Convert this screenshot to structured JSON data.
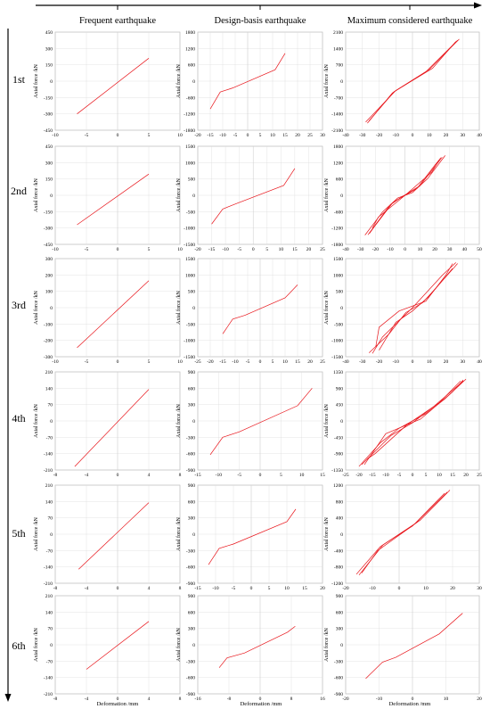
{
  "column_titles": [
    "Frequent earthquake",
    "Design-basis earthquake",
    "Maximum considered earthquake"
  ],
  "row_labels": [
    "1st",
    "2nd",
    "3rd",
    "4th",
    "5th",
    "6th"
  ],
  "y_axis_label": "Axial force /kN",
  "x_axis_label": "Deformation /mm",
  "colors": {
    "line": "#e8141a",
    "axis": "#000000",
    "grid": "#dcdcdc",
    "frame": "#9a9a9a"
  },
  "chart_data": [
    {
      "type": "line",
      "row": "1st",
      "column": "Frequent earthquake",
      "xlim": [
        -10,
        10
      ],
      "ylim": [
        -450,
        450
      ],
      "xticks": [
        -10,
        -5,
        0,
        5,
        10
      ],
      "yticks": [
        -450,
        -300,
        -150,
        0,
        150,
        300,
        450
      ],
      "series": [
        {
          "points": [
            [
              -6.5,
              -300
            ],
            [
              5,
              210
            ]
          ]
        }
      ]
    },
    {
      "type": "line",
      "row": "1st",
      "column": "Design-basis earthquake",
      "xlim": [
        -20,
        30
      ],
      "ylim": [
        -1800,
        1800
      ],
      "xticks": [
        -20,
        -15,
        -10,
        -5,
        0,
        5,
        10,
        15,
        20,
        25,
        30
      ],
      "yticks": [
        -1800,
        -1200,
        -600,
        0,
        600,
        1200,
        1800
      ],
      "series": [
        {
          "points": [
            [
              -15,
              -1020
            ],
            [
              -11,
              -400
            ],
            [
              -6,
              -250
            ],
            [
              11,
              420
            ],
            [
              15,
              1020
            ]
          ]
        }
      ]
    },
    {
      "type": "line",
      "row": "1st",
      "column": "Maximum considered earthquake",
      "xlim": [
        -40,
        40
      ],
      "ylim": [
        -2100,
        2100
      ],
      "xticks": [
        -40,
        -30,
        -20,
        -10,
        0,
        10,
        20,
        30,
        40
      ],
      "yticks": [
        -2100,
        -1400,
        -700,
        0,
        700,
        1400,
        2100
      ],
      "series": [
        {
          "points": [
            [
              -28,
              -1750
            ],
            [
              -10,
              -400
            ],
            [
              10,
              500
            ],
            [
              28,
              1800
            ]
          ]
        },
        {
          "points": [
            [
              -27,
              -1800
            ],
            [
              -12,
              -500
            ],
            [
              8,
              400
            ],
            [
              27,
              1750
            ]
          ]
        },
        {
          "points": [
            [
              -26,
              -1700
            ],
            [
              -11,
              -450
            ],
            [
              12,
              550
            ],
            [
              26,
              1700
            ]
          ]
        }
      ]
    },
    {
      "type": "line",
      "row": "2nd",
      "column": "Frequent earthquake",
      "xlim": [
        -10,
        10
      ],
      "ylim": [
        -450,
        450
      ],
      "xticks": [
        -10,
        -5,
        0,
        5,
        10
      ],
      "yticks": [
        -450,
        -300,
        -150,
        0,
        150,
        300,
        450
      ],
      "series": [
        {
          "points": [
            [
              -6.5,
              -270
            ],
            [
              5,
              195
            ]
          ]
        }
      ]
    },
    {
      "type": "line",
      "row": "2nd",
      "column": "Design-basis earthquake",
      "xlim": [
        -20,
        25
      ],
      "ylim": [
        -1500,
        1500
      ],
      "xticks": [
        -20,
        -15,
        -10,
        -5,
        0,
        5,
        10,
        15,
        20,
        25
      ],
      "yticks": [
        -1500,
        -1000,
        -500,
        0,
        500,
        1000,
        1500
      ],
      "series": [
        {
          "points": [
            [
              -15,
              -880
            ],
            [
              -11,
              -420
            ],
            [
              -6,
              -250
            ],
            [
              11,
              300
            ],
            [
              15,
              820
            ]
          ]
        }
      ]
    },
    {
      "type": "line",
      "row": "2nd",
      "column": "Maximum considered earthquake",
      "xlim": [
        -40,
        50
      ],
      "ylim": [
        -1800,
        1800
      ],
      "xticks": [
        -40,
        -30,
        -20,
        -10,
        0,
        10,
        20,
        30,
        40,
        50
      ],
      "yticks": [
        -1800,
        -1200,
        -600,
        0,
        600,
        1200,
        1800
      ],
      "series": [
        {
          "points": [
            [
              -27,
              -1460
            ],
            [
              -15,
              -600
            ],
            [
              -5,
              -100
            ],
            [
              5,
              100
            ],
            [
              15,
              600
            ],
            [
              27,
              1460
            ]
          ]
        },
        {
          "points": [
            [
              -25,
              -1450
            ],
            [
              -10,
              -350
            ],
            [
              -2,
              -50
            ],
            [
              10,
              350
            ],
            [
              25,
              1400
            ]
          ]
        },
        {
          "points": [
            [
              -22,
              -1200
            ],
            [
              -18,
              -800
            ],
            [
              0,
              0
            ],
            [
              18,
              850
            ],
            [
              24,
              1380
            ]
          ]
        },
        {
          "points": [
            [
              -24,
              -1400
            ],
            [
              -20,
              -1100
            ],
            [
              -8,
              -250
            ],
            [
              8,
              250
            ],
            [
              20,
              1100
            ],
            [
              23,
              1300
            ]
          ]
        }
      ]
    },
    {
      "type": "line",
      "row": "3rd",
      "column": "Frequent earthquake",
      "xlim": [
        -10,
        10
      ],
      "ylim": [
        -300,
        300
      ],
      "xticks": [
        -10,
        -5,
        0,
        5,
        10
      ],
      "yticks": [
        -300,
        -200,
        -100,
        0,
        100,
        200,
        300
      ],
      "series": [
        {
          "points": [
            [
              -6.5,
              -245
            ],
            [
              5,
              165
            ]
          ]
        }
      ]
    },
    {
      "type": "line",
      "row": "3rd",
      "column": "Design-basis earthquake",
      "xlim": [
        -25,
        25
      ],
      "ylim": [
        -1500,
        1500
      ],
      "xticks": [
        -25,
        -20,
        -15,
        -10,
        -5,
        0,
        5,
        10,
        15,
        20,
        25
      ],
      "yticks": [
        -1500,
        -1000,
        -500,
        0,
        500,
        1000,
        1500
      ],
      "series": [
        {
          "points": [
            [
              -15,
              -800
            ],
            [
              -11,
              -350
            ],
            [
              -6,
              -230
            ],
            [
              10,
              300
            ],
            [
              15,
              700
            ]
          ]
        }
      ]
    },
    {
      "type": "line",
      "row": "3rd",
      "column": "Maximum considered earthquake",
      "xlim": [
        -40,
        40
      ],
      "ylim": [
        -1500,
        1500
      ],
      "xticks": [
        -40,
        -30,
        -20,
        -10,
        0,
        10,
        20,
        30,
        40
      ],
      "yticks": [
        -1500,
        -1000,
        -500,
        0,
        500,
        1000,
        1500
      ],
      "series": [
        {
          "points": [
            [
              -26,
              -1380
            ],
            [
              -14,
              -800
            ],
            [
              -4,
              -150
            ],
            [
              6,
              150
            ],
            [
              14,
              600
            ],
            [
              27,
              1350
            ]
          ]
        },
        {
          "points": [
            [
              -24,
              -1400
            ],
            [
              -18,
              -900
            ],
            [
              0,
              0
            ],
            [
              18,
              1000
            ],
            [
              26,
              1380
            ]
          ]
        },
        {
          "points": [
            [
              -22,
              -1200
            ],
            [
              -20,
              -600
            ],
            [
              -8,
              -100
            ],
            [
              8,
              200
            ],
            [
              20,
              1000
            ],
            [
              24,
              1350
            ]
          ]
        },
        {
          "points": [
            [
              -20,
              -1300
            ],
            [
              -10,
              -450
            ],
            [
              0,
              -100
            ],
            [
              10,
              350
            ],
            [
              24,
              1200
            ]
          ]
        }
      ]
    },
    {
      "type": "line",
      "row": "4th",
      "column": "Frequent earthquake",
      "xlim": [
        -8,
        8
      ],
      "ylim": [
        -210,
        210
      ],
      "xticks": [
        -8,
        -4,
        0,
        4,
        8
      ],
      "yticks": [
        -210,
        -140,
        -70,
        0,
        70,
        140,
        210
      ],
      "series": [
        {
          "points": [
            [
              -5.5,
              -195
            ],
            [
              4,
              135
            ]
          ]
        }
      ]
    },
    {
      "type": "line",
      "row": "4th",
      "column": "Design-basis earthquake",
      "xlim": [
        -15,
        15
      ],
      "ylim": [
        -900,
        900
      ],
      "xticks": [
        -15,
        -10,
        -5,
        0,
        5,
        10,
        15
      ],
      "yticks": [
        -900,
        -600,
        -300,
        0,
        300,
        600,
        900
      ],
      "series": [
        {
          "points": [
            [
              -12,
              -620
            ],
            [
              -9,
              -300
            ],
            [
              -5,
              -200
            ],
            [
              9,
              280
            ],
            [
              12.5,
              600
            ]
          ]
        }
      ]
    },
    {
      "type": "line",
      "row": "4th",
      "column": "Maximum considered earthquake",
      "xlim": [
        -25,
        25
      ],
      "ylim": [
        -1350,
        1350
      ],
      "xticks": [
        -25,
        -20,
        -15,
        -10,
        -5,
        0,
        5,
        10,
        15,
        20,
        25
      ],
      "yticks": [
        -1350,
        -900,
        -450,
        0,
        450,
        900,
        1350
      ],
      "series": [
        {
          "points": [
            [
              -20,
              -1250
            ],
            [
              -12,
              -600
            ],
            [
              -5,
              -200
            ],
            [
              5,
              200
            ],
            [
              12,
              600
            ],
            [
              20,
              1150
            ]
          ]
        },
        {
          "points": [
            [
              -19,
              -1200
            ],
            [
              -8,
              -400
            ],
            [
              0,
              -50
            ],
            [
              8,
              400
            ],
            [
              19,
              1100
            ]
          ]
        },
        {
          "points": [
            [
              -17,
              -1050
            ],
            [
              -14,
              -900
            ],
            [
              -2,
              -100
            ],
            [
              10,
              500
            ],
            [
              18,
              1100
            ]
          ]
        },
        {
          "points": [
            [
              -18,
              -1200
            ],
            [
              -10,
              -350
            ],
            [
              3,
              50
            ],
            [
              15,
              800
            ],
            [
              19,
              1130
            ]
          ]
        }
      ]
    },
    {
      "type": "line",
      "row": "5th",
      "column": "Frequent earthquake",
      "xlim": [
        -8,
        8
      ],
      "ylim": [
        -210,
        210
      ],
      "xticks": [
        -8,
        -4,
        0,
        4,
        8
      ],
      "yticks": [
        -210,
        -140,
        -70,
        0,
        70,
        140,
        210
      ],
      "series": [
        {
          "points": [
            [
              -5,
              -150
            ],
            [
              4,
              135
            ]
          ]
        }
      ]
    },
    {
      "type": "line",
      "row": "5th",
      "column": "Design-basis earthquake",
      "xlim": [
        -15,
        20
      ],
      "ylim": [
        -900,
        900
      ],
      "xticks": [
        -15,
        -10,
        -5,
        0,
        5,
        10,
        15,
        20
      ],
      "yticks": [
        -900,
        -600,
        -300,
        0,
        300,
        600,
        900
      ],
      "series": [
        {
          "points": [
            [
              -12,
              -560
            ],
            [
              -9,
              -260
            ],
            [
              -5,
              -180
            ],
            [
              10,
              230
            ],
            [
              12.5,
              460
            ]
          ]
        }
      ]
    },
    {
      "type": "line",
      "row": "5th",
      "column": "Maximum considered earthquake",
      "xlim": [
        -20,
        30
      ],
      "ylim": [
        -1200,
        1200
      ],
      "xticks": [
        -20,
        -10,
        0,
        10,
        20,
        30
      ],
      "yticks": [
        -1200,
        -800,
        -400,
        0,
        400,
        800,
        1200
      ],
      "series": [
        {
          "points": [
            [
              -15,
              -1000
            ],
            [
              -6,
              -260
            ],
            [
              6,
              260
            ],
            [
              18,
              1030
            ]
          ]
        },
        {
          "points": [
            [
              -14,
              -950
            ],
            [
              -8,
              -400
            ],
            [
              8,
              350
            ],
            [
              19,
              1080
            ]
          ]
        },
        {
          "points": [
            [
              -16,
              -980
            ],
            [
              -7,
              -300
            ],
            [
              5,
              200
            ],
            [
              17,
              1000
            ]
          ]
        }
      ]
    },
    {
      "type": "line",
      "row": "6th",
      "column": "Frequent earthquake",
      "xlim": [
        -8,
        8
      ],
      "ylim": [
        -210,
        210
      ],
      "xticks": [
        -8,
        -4,
        0,
        4,
        8
      ],
      "yticks": [
        -210,
        -140,
        -70,
        0,
        70,
        140,
        210
      ],
      "series": [
        {
          "points": [
            [
              -4,
              -105
            ],
            [
              4,
              100
            ]
          ]
        }
      ]
    },
    {
      "type": "line",
      "row": "6th",
      "column": "Design-basis earthquake",
      "xlim": [
        -16,
        16
      ],
      "ylim": [
        -900,
        900
      ],
      "xticks": [
        -16,
        -8,
        0,
        8,
        16
      ],
      "yticks": [
        -900,
        -600,
        -300,
        0,
        300,
        600,
        900
      ],
      "series": [
        {
          "points": [
            [
              -10.5,
              -420
            ],
            [
              -8.5,
              -240
            ],
            [
              -4,
              -150
            ],
            [
              7,
              230
            ],
            [
              9,
              340
            ]
          ]
        }
      ]
    },
    {
      "type": "line",
      "row": "6th",
      "column": "Maximum considered earthquake",
      "xlim": [
        -20,
        20
      ],
      "ylim": [
        -900,
        900
      ],
      "xticks": [
        -20,
        -10,
        0,
        10,
        20
      ],
      "yticks": [
        -900,
        -600,
        -300,
        0,
        300,
        600,
        900
      ],
      "series": [
        {
          "points": [
            [
              -14,
              -620
            ],
            [
              -9,
              -320
            ],
            [
              -5,
              -230
            ],
            [
              8,
              200
            ],
            [
              15,
              580
            ]
          ]
        }
      ]
    }
  ]
}
